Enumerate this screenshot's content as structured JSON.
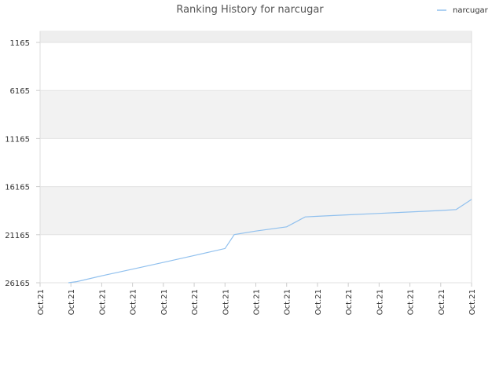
{
  "chart_data": {
    "type": "line",
    "title": "Ranking History for narcugar",
    "legend": {
      "label": "narcugar",
      "position": "top-right"
    },
    "y_axis": {
      "ticks": [
        "1165",
        "6165",
        "11165",
        "16165",
        "21165",
        "26165"
      ],
      "min": 1165,
      "max": 26165,
      "inverted": true
    },
    "x_axis": {
      "ticks": [
        "Oct.21",
        "Oct.21",
        "Oct.21",
        "Oct.21",
        "Oct.21",
        "Oct.21",
        "Oct.21",
        "Oct.21",
        "Oct.21",
        "Oct.21",
        "Oct.21",
        "Oct.21",
        "Oct.21",
        "Oct.21",
        "Oct.21"
      ]
    },
    "series": [
      {
        "name": "narcugar",
        "color": "#90c0ee",
        "points": [
          [
            0.92,
            26165
          ],
          [
            1.2,
            26040
          ],
          [
            2.0,
            25450
          ],
          [
            3.0,
            24750
          ],
          [
            4.0,
            24050
          ],
          [
            5.0,
            23330
          ],
          [
            6.0,
            22600
          ],
          [
            6.3,
            21160
          ],
          [
            7.0,
            20790
          ],
          [
            8.0,
            20350
          ],
          [
            8.6,
            19320
          ],
          [
            9.0,
            19250
          ],
          [
            10.0,
            19100
          ],
          [
            11.0,
            18950
          ],
          [
            12.0,
            18800
          ],
          [
            13.0,
            18650
          ],
          [
            13.5,
            18550
          ],
          [
            14.0,
            17500
          ]
        ]
      }
    ],
    "bands": [
      {
        "from": 1165,
        "to": 0,
        "color": "#eeeeee"
      },
      {
        "from": 6165,
        "to": 11165,
        "color": "#f2f2f2"
      },
      {
        "from": 16165,
        "to": 21165,
        "color": "#f2f2f2"
      }
    ],
    "grid": true
  }
}
